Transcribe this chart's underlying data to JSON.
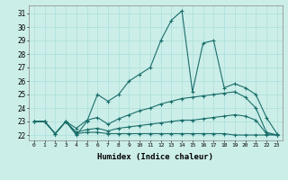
{
  "xlabel": "Humidex (Indice chaleur)",
  "bg_color": "#cceee8",
  "grid_color": "#aadddd",
  "line_color": "#1a6e6a",
  "xlim": [
    -0.5,
    23.5
  ],
  "ylim": [
    21.6,
    31.6
  ],
  "xticks": [
    0,
    1,
    2,
    3,
    4,
    5,
    6,
    7,
    8,
    9,
    10,
    11,
    12,
    13,
    14,
    15,
    16,
    17,
    18,
    19,
    20,
    21,
    22,
    23
  ],
  "yticks": [
    22,
    23,
    24,
    25,
    26,
    27,
    28,
    29,
    30,
    31
  ],
  "series": [
    [
      23.0,
      23.0,
      22.1,
      23.0,
      22.0,
      23.0,
      25.0,
      24.5,
      25.0,
      26.0,
      26.5,
      27.0,
      29.0,
      30.5,
      31.2,
      25.2,
      28.8,
      29.0,
      25.5,
      25.8,
      25.5,
      25.0,
      23.3,
      22.1
    ],
    [
      23.0,
      23.0,
      22.1,
      23.0,
      22.5,
      23.1,
      23.3,
      22.8,
      23.2,
      23.5,
      23.8,
      24.0,
      24.3,
      24.5,
      24.7,
      24.8,
      24.9,
      25.0,
      25.1,
      25.2,
      24.8,
      24.0,
      22.2,
      22.0
    ],
    [
      23.0,
      23.0,
      22.1,
      23.0,
      22.2,
      22.4,
      22.5,
      22.3,
      22.5,
      22.6,
      22.7,
      22.8,
      22.9,
      23.0,
      23.1,
      23.1,
      23.2,
      23.3,
      23.4,
      23.5,
      23.4,
      23.1,
      22.1,
      22.0
    ],
    [
      23.0,
      23.0,
      22.1,
      23.0,
      22.1,
      22.2,
      22.2,
      22.1,
      22.1,
      22.1,
      22.1,
      22.1,
      22.1,
      22.1,
      22.1,
      22.1,
      22.1,
      22.1,
      22.1,
      22.0,
      22.0,
      22.0,
      22.0,
      22.0
    ]
  ]
}
